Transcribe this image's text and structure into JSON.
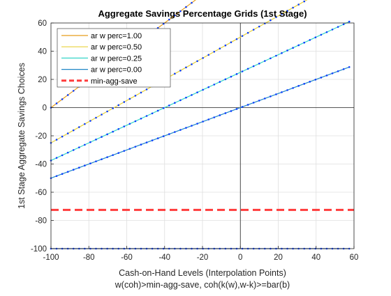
{
  "chart_data": {
    "type": "line",
    "title": "Aggregate Savings Percentage Grids (1st Stage)",
    "xlabel_line1": "Cash-on-Hand Levels (Interpolation Points)",
    "xlabel_line2": "w(coh)>min-agg-save, coh(k(w),w-k)>=bar(b)",
    "ylabel": "1st Stage Aggregate Savings Choices",
    "xlim": [
      -100,
      60
    ],
    "ylim": [
      -100,
      60
    ],
    "xticks": [
      -100,
      -80,
      -60,
      -40,
      -20,
      0,
      20,
      40,
      60
    ],
    "yticks": [
      -100,
      -80,
      -60,
      -40,
      -20,
      0,
      20,
      40,
      60
    ],
    "grid": true,
    "legend_position": "top-left",
    "x_start": -100,
    "x_end": 57.5,
    "point_count": 54,
    "series": [
      {
        "name": "ar w perc=1.00",
        "style": "line",
        "color": "#e69d1a",
        "intercept": 0,
        "slope": 1.0
      },
      {
        "name": "ar w perc=0.50",
        "style": "line",
        "color": "#e8d23a",
        "intercept": -25,
        "slope": 0.75
      },
      {
        "name": "ar w perc=0.25",
        "style": "line",
        "color": "#36d6c8",
        "intercept": -37.5,
        "slope": 0.625
      },
      {
        "name": "ar w perc=0.00",
        "style": "line",
        "color": "#1f86c6",
        "intercept": -50,
        "slope": 0.5
      },
      {
        "name": "",
        "style": "line",
        "color": "#1a4f9e",
        "intercept": -100,
        "slope": 0.0
      }
    ],
    "reference_line": {
      "name": "min-agg-save",
      "y": -72.5,
      "color": "#ff3b3b",
      "style": "dashed"
    },
    "marker_color": "#0a3cff"
  }
}
